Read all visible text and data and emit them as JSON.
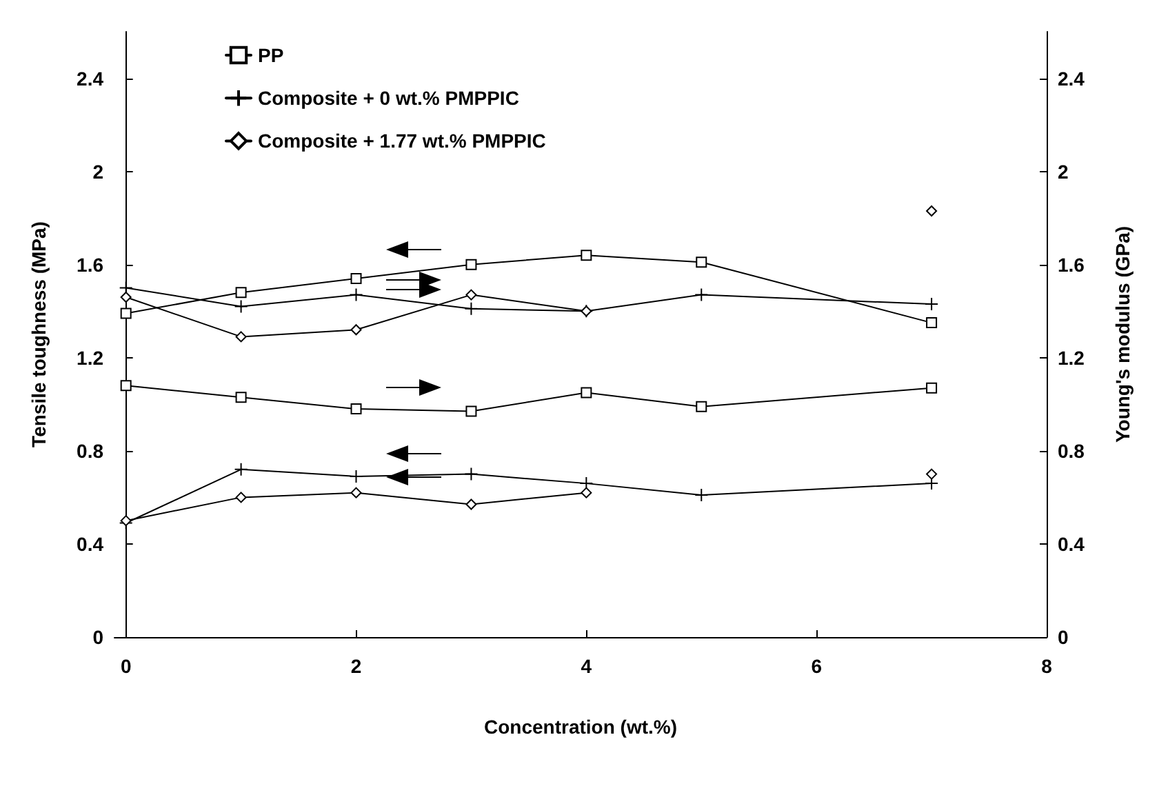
{
  "chart_data": {
    "type": "line",
    "xlabel": "Concentration (wt.%)",
    "ylabel": "Tensile toughness (MPa)",
    "y2label": "Young's modulus (GPa)",
    "xlim": [
      -0.1,
      8
    ],
    "xticks": [
      0,
      2,
      4,
      6,
      8
    ],
    "ylim": [
      0,
      2.6
    ],
    "yticks": [
      0,
      0.4,
      0.8,
      1.2,
      1.6,
      2,
      2.4
    ],
    "y2lim": [
      0,
      2.6
    ],
    "y2ticks": [
      0,
      0.4,
      0.8,
      1.2,
      1.6,
      2,
      2.4
    ],
    "grid": false,
    "legend": "top left",
    "line_style": "solid",
    "series": [
      {
        "name": "PP",
        "color": "#000000",
        "marker": "square",
        "axis": "y",
        "x": [
          0,
          1,
          2,
          3,
          4,
          5,
          7
        ],
        "values": [
          1.39,
          1.48,
          1.54,
          1.6,
          1.64,
          1.61,
          1.35
        ]
      },
      {
        "color": "#000000",
        "marker": "square",
        "axis": "y2",
        "x": [
          0,
          1,
          2,
          3,
          4,
          5,
          7
        ],
        "values": [
          1.08,
          1.03,
          0.98,
          0.97,
          1.05,
          0.99,
          1.07
        ]
      },
      {
        "name": "Composite + 0 wt.% PMPPIC",
        "color": "#000000",
        "marker": "cross",
        "axis": "y2",
        "x": [
          0,
          1,
          2,
          3,
          4,
          5,
          7
        ],
        "values": [
          1.5,
          1.42,
          1.47,
          1.41,
          1.4,
          1.47,
          1.43
        ]
      },
      {
        "color": "#000000",
        "marker": "cross",
        "axis": "y",
        "x": [
          0,
          1,
          2,
          3,
          4,
          5,
          7
        ],
        "values": [
          0.49,
          0.72,
          0.69,
          0.7,
          0.66,
          0.61,
          0.66
        ]
      },
      {
        "name": "Composite + 1.77 wt.% PMPPIC",
        "color": "#000000",
        "marker": "diamond",
        "axis": "y2",
        "x": [
          0,
          1,
          2,
          3,
          4,
          5,
          7
        ],
        "values": [
          1.46,
          1.29,
          1.32,
          1.47,
          1.4,
          null,
          1.83
        ]
      },
      {
        "color": "#000000",
        "marker": "diamond",
        "axis": "y",
        "x": [
          0,
          1,
          2,
          3,
          4,
          5,
          7
        ],
        "values": [
          0.5,
          0.6,
          0.62,
          0.57,
          0.62,
          null,
          0.7
        ]
      }
    ]
  }
}
